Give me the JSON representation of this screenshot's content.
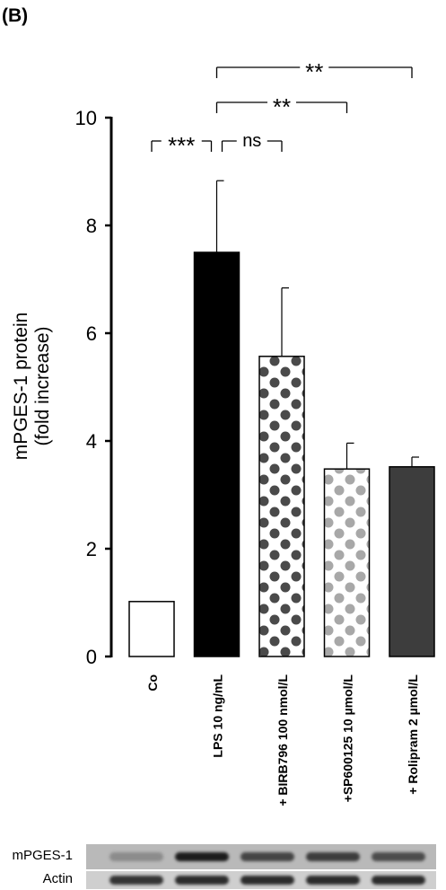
{
  "panel_label": "(B)",
  "chart_data": {
    "type": "bar",
    "ylabel_line1": "mPGES-1 protein",
    "ylabel_line2": "(fold increase)",
    "ylim": [
      0,
      10
    ],
    "yticks": [
      "0",
      "2",
      "4",
      "6",
      "8",
      "10"
    ],
    "categories": [
      "Co",
      "LPS 10 ng/mL",
      "+ BIRB796 100 nmol/L",
      "+SP600125 10 µmol/L",
      "+ Rolipram 2 µmol/L"
    ],
    "values": [
      1.02,
      7.5,
      5.57,
      3.48,
      3.52
    ],
    "errors": [
      0,
      1.33,
      1.27,
      0.48,
      0.18
    ],
    "fills": [
      "white",
      "black",
      "dark-dots",
      "light-dots",
      "dark-gray"
    ],
    "colors": {
      "black": "#000000",
      "dark_dot": "#4a4a4a",
      "light_dot": "#a8a8a8",
      "dark_gray": "#3d3d3d"
    },
    "significance": [
      {
        "from": 0,
        "to": 1,
        "label": "***"
      },
      {
        "from": 1,
        "to": 2,
        "label": "ns"
      },
      {
        "from": 1,
        "to": 3,
        "label": "**"
      },
      {
        "from": 1,
        "to": 4,
        "label": "**"
      }
    ],
    "grid": false,
    "legend": "none"
  },
  "blot": {
    "rows": [
      {
        "label": "mPGES-1",
        "bands": [
          0.25,
          0.95,
          0.7,
          0.75,
          0.65
        ]
      },
      {
        "label": "Actin",
        "bands": [
          0.8,
          0.85,
          0.85,
          0.85,
          0.85
        ]
      }
    ]
  }
}
